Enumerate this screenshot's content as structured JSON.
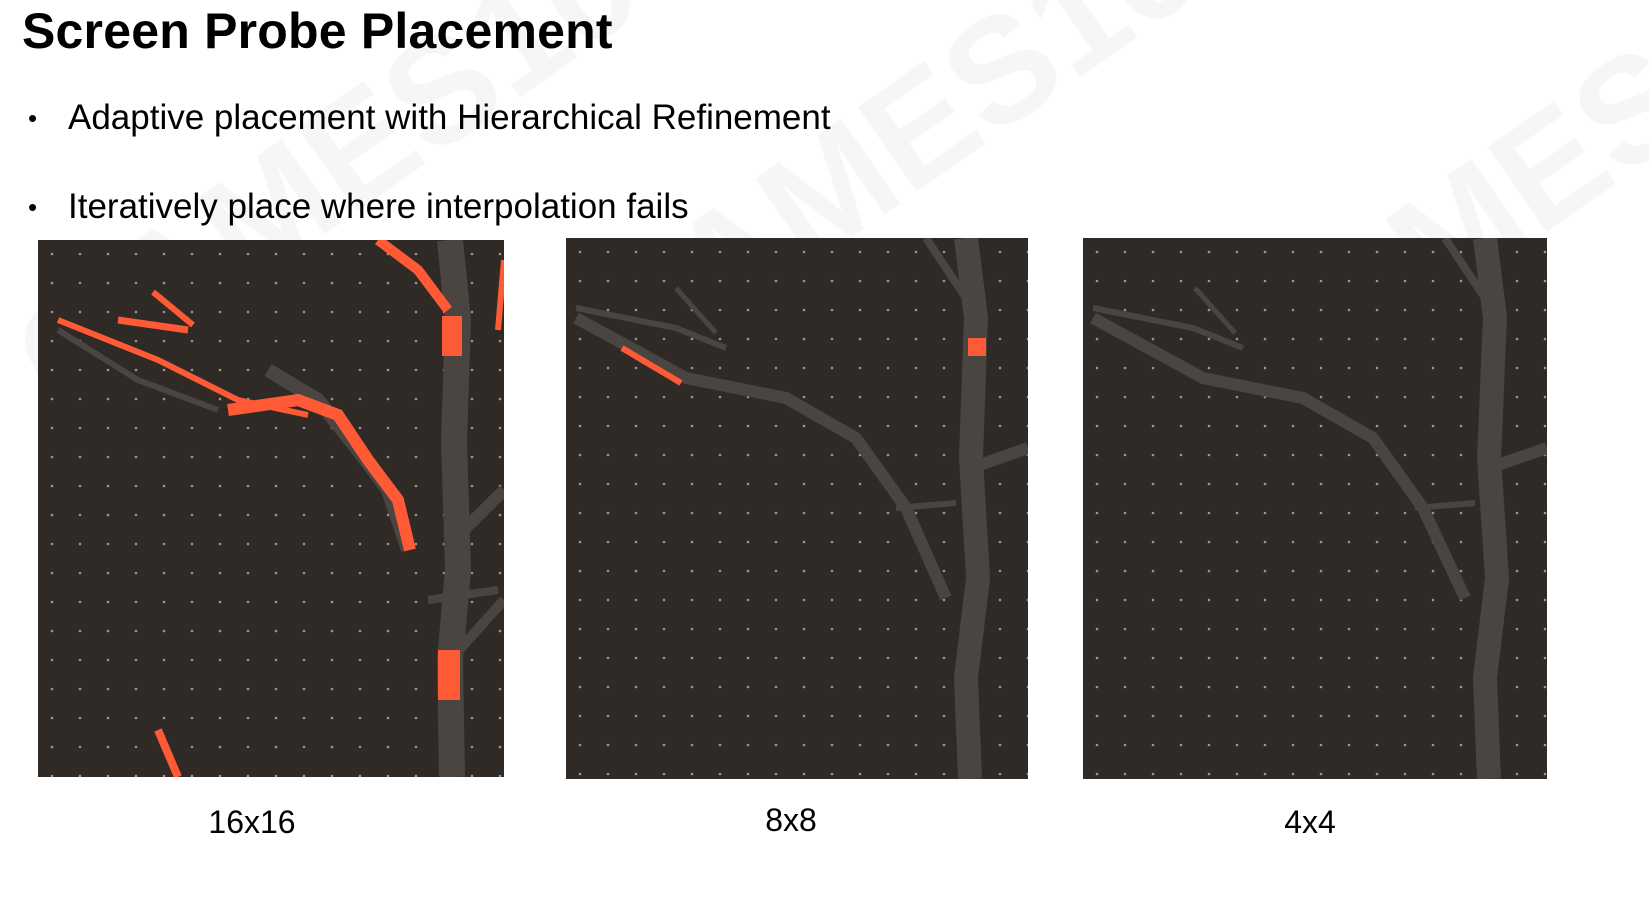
{
  "slide": {
    "title": "Screen Probe Placement",
    "bullets": [
      "Adaptive placement with Hierarchical Refinement",
      "Iteratively place where interpolation fails"
    ],
    "watermark_text": "GAMES104"
  },
  "figures": [
    {
      "caption": "16x16",
      "highlight_color": "#ff5a36"
    },
    {
      "caption": "8x8",
      "highlight_color": "#ff5a36"
    },
    {
      "caption": "4x4",
      "highlight_color": "#ff5a36"
    }
  ],
  "colors": {
    "background": "#2f2a26",
    "branch": "#4a4541",
    "highlight": "#ff5a36",
    "probe_dot": "#9a9590"
  }
}
